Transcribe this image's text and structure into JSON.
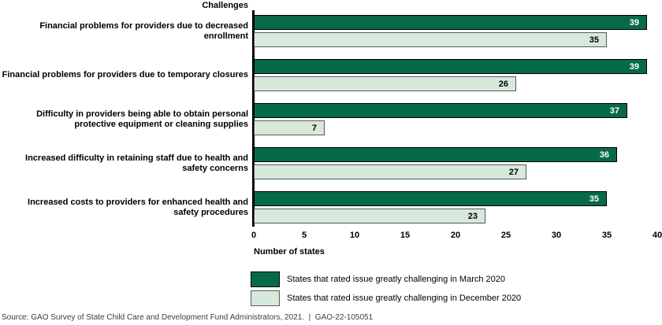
{
  "source": "Source: GAO Survey of State Child Care and Development Fund Administrators, 2021.  |  GAO-22-105051",
  "colors": {
    "march_fill": "#066a48",
    "march_border": "#000000",
    "december_fill": "#d7e9db",
    "december_border": "#58595b"
  },
  "legend": [
    {
      "label": "States that rated issue greatly challenging in March 2020",
      "fill": "#066a48",
      "border": "#000000"
    },
    {
      "label": "States that rated issue greatly challenging in December 2020",
      "fill": "#d7e9db",
      "border": "#58595b"
    }
  ],
  "chart_data": {
    "type": "bar",
    "orientation": "horizontal",
    "title": "Challenges",
    "xlabel": "Number of states",
    "xlim": [
      0,
      40
    ],
    "xticks": [
      0,
      5,
      10,
      15,
      20,
      25,
      30,
      35,
      40
    ],
    "grid": false,
    "legend_position": "bottom",
    "categories": [
      "Financial problems for providers due to decreased enrollment",
      "Financial problems for providers due to temporary closures",
      "Difficulty in providers being able to obtain personal\nprotective equipment or cleaning supplies",
      "Increased difficulty in retaining staff due to health and\nsafety concerns",
      "Increased costs to providers for enhanced health and\nsafety procedures"
    ],
    "series": [
      {
        "name": "States that rated issue greatly challenging in March 2020",
        "values": [
          39,
          39,
          37,
          36,
          35
        ]
      },
      {
        "name": "States that rated issue greatly challenging in December 2020",
        "values": [
          35,
          26,
          7,
          27,
          23
        ]
      }
    ]
  }
}
